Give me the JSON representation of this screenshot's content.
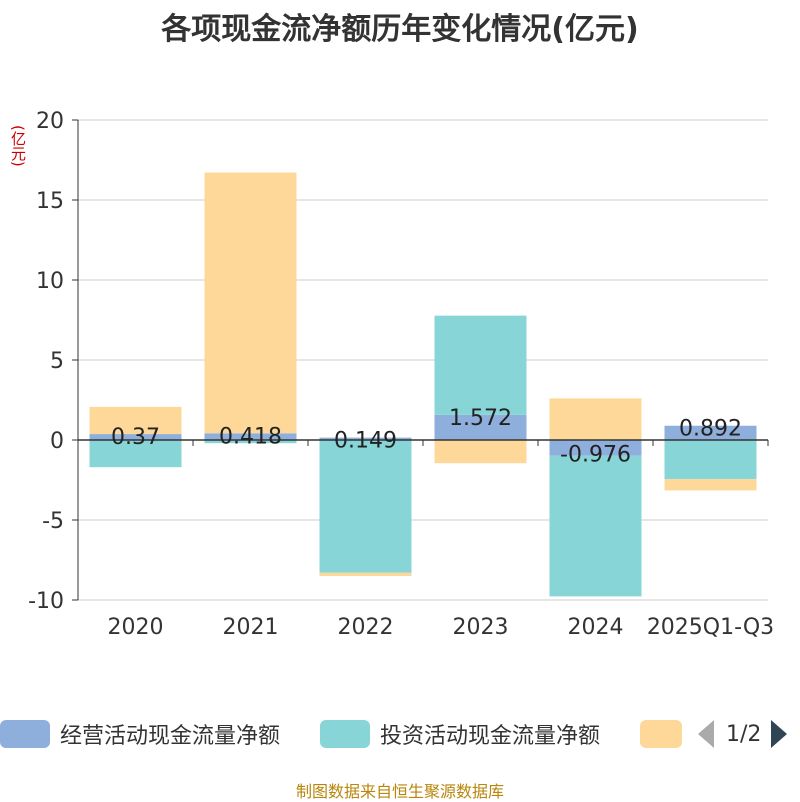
{
  "title": "各项现金流净额历年变化情况(亿元)",
  "unit_label": "(亿元)",
  "footer": "制图数据来自恒生聚源数据库",
  "legend": {
    "items": [
      {
        "label": "经营活动现金流量净额",
        "color": "#8eaedc"
      },
      {
        "label": "投资活动现金流量净额",
        "color": "#88d5d8"
      },
      {
        "label": "",
        "color": "#fdd899"
      }
    ],
    "page": "1/2"
  },
  "chart_data": {
    "type": "bar",
    "stacked": true,
    "categories": [
      "2020",
      "2021",
      "2022",
      "2023",
      "2024",
      "2025Q1-Q3"
    ],
    "ylim": [
      -10,
      20
    ],
    "yticks": [
      20,
      15,
      10,
      5,
      0,
      -5,
      -10
    ],
    "series": [
      {
        "name": "经营活动现金流量净额",
        "color": "#8eaedc",
        "values": [
          0.37,
          0.418,
          0.149,
          1.572,
          -0.976,
          0.892
        ],
        "labels": [
          "0.37",
          "0.418",
          "0.149",
          "1.572",
          "-0.976",
          "0.892"
        ]
      },
      {
        "name": "投资活动现金流量净额",
        "color": "#88d5d8",
        "values": [
          -1.7,
          -0.2,
          -8.3,
          6.2,
          -8.8,
          -2.45
        ]
      },
      {
        "name": "",
        "color": "#fdd899",
        "values": [
          1.7,
          16.3,
          -0.2,
          -1.45,
          2.6,
          -0.7
        ]
      }
    ]
  }
}
